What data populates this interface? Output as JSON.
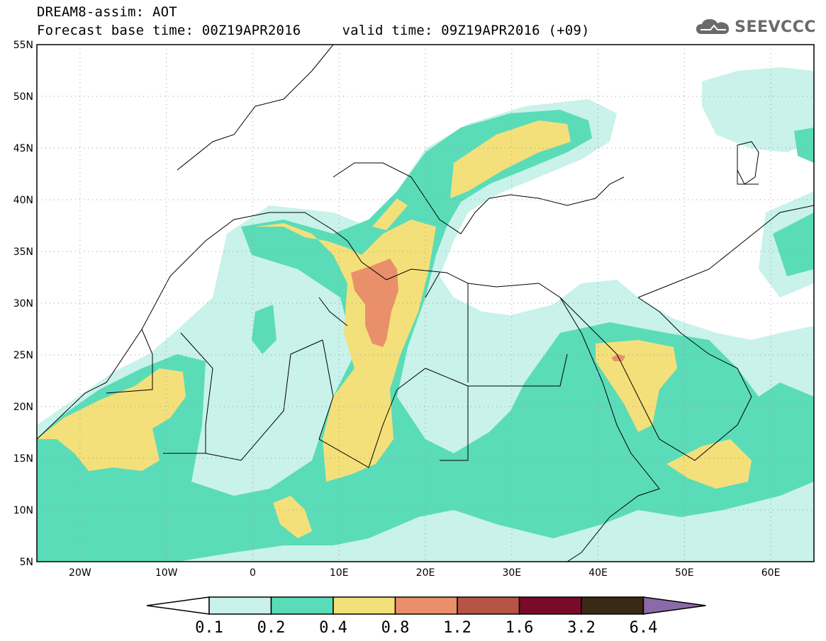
{
  "header": {
    "line1": "DREAM8-assim: AOT",
    "base_time": "Forecast base time: 00Z19APR2016",
    "valid_time": "valid time: 09Z19APR2016 (+09)"
  },
  "logo": {
    "text": "SEEVCCC",
    "icon": "cloud-icon"
  },
  "map": {
    "lat_labels": [
      "55N",
      "50N",
      "45N",
      "40N",
      "35N",
      "30N",
      "25N",
      "20N",
      "15N",
      "10N",
      "5N"
    ],
    "lon_labels": [
      "20W",
      "10W",
      "0",
      "10E",
      "20E",
      "30E",
      "40E",
      "50E",
      "60E"
    ],
    "lat_range": [
      5,
      55
    ],
    "lon_range": [
      -25,
      65
    ],
    "gridlines": "dotted"
  },
  "colorbar": {
    "labels": [
      "0.1",
      "0.2",
      "0.4",
      "0.8",
      "1.2",
      "1.6",
      "3.2",
      "6.4"
    ],
    "colors": [
      "#c8f2ea",
      "#5adcb8",
      "#f4e07a",
      "#e9906a",
      "#b55545",
      "#7a0a2a",
      "#3a2a15",
      "#8a6aa8"
    ],
    "under_color": "#ffffff"
  }
}
